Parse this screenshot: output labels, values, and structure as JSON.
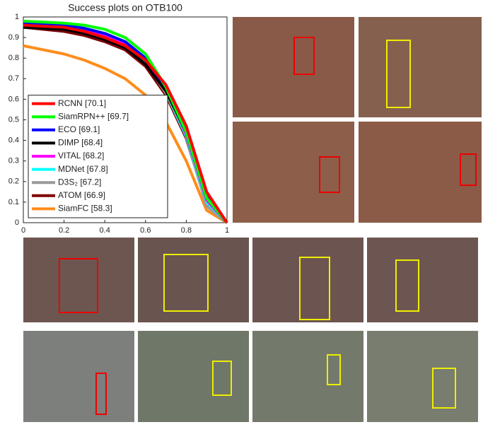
{
  "chart_data": {
    "type": "line",
    "title": "Success plots on OTB100",
    "x": [
      0,
      0.1,
      0.2,
      0.3,
      0.4,
      0.5,
      0.6,
      0.7,
      0.8,
      0.9,
      1
    ],
    "xlim": [
      0,
      1
    ],
    "xticks": [
      0,
      0.2,
      0.4,
      0.6,
      0.8,
      1
    ],
    "ylim": [
      0,
      1
    ],
    "yticks": [
      0,
      0.1,
      0.2,
      0.3,
      0.4,
      0.5,
      0.6,
      0.7,
      0.8,
      0.9,
      1
    ],
    "legend": "lower left",
    "series": [
      {
        "name": "RCNN [70.1]",
        "color": "#ff0000",
        "values": [
          0.96,
          0.955,
          0.95,
          0.93,
          0.9,
          0.86,
          0.79,
          0.67,
          0.47,
          0.15,
          0
        ]
      },
      {
        "name": "SiamRPN++ [69.7]",
        "color": "#00ff00",
        "values": [
          0.98,
          0.975,
          0.97,
          0.96,
          0.94,
          0.9,
          0.82,
          0.66,
          0.44,
          0.12,
          0
        ]
      },
      {
        "name": "ECO [69.1]",
        "color": "#0000ff",
        "values": [
          0.97,
          0.965,
          0.96,
          0.945,
          0.92,
          0.88,
          0.8,
          0.66,
          0.45,
          0.13,
          0
        ]
      },
      {
        "name": "DIMP [68.4]",
        "color": "#000000",
        "values": [
          0.95,
          0.945,
          0.94,
          0.92,
          0.89,
          0.85,
          0.77,
          0.64,
          0.44,
          0.12,
          0
        ]
      },
      {
        "name": "VITAL [68.2]",
        "color": "#ff00ff",
        "values": [
          0.98,
          0.97,
          0.96,
          0.94,
          0.91,
          0.87,
          0.79,
          0.65,
          0.43,
          0.11,
          0
        ]
      },
      {
        "name": "MDNet [67.8]",
        "color": "#00ffff",
        "values": [
          0.97,
          0.965,
          0.955,
          0.935,
          0.905,
          0.86,
          0.78,
          0.64,
          0.42,
          0.1,
          0
        ]
      },
      {
        "name": "D3S₂ [67.2]",
        "color": "#999999",
        "values": [
          0.96,
          0.955,
          0.945,
          0.925,
          0.9,
          0.86,
          0.78,
          0.63,
          0.42,
          0.08,
          0
        ]
      },
      {
        "name": "ATOM [66.9]",
        "color": "#800000",
        "values": [
          0.95,
          0.94,
          0.93,
          0.91,
          0.88,
          0.84,
          0.76,
          0.62,
          0.41,
          0.09,
          0
        ]
      },
      {
        "name": "SiamFC [58.3]",
        "color": "#ff8c1a",
        "values": [
          0.86,
          0.84,
          0.82,
          0.79,
          0.75,
          0.7,
          0.62,
          0.49,
          0.3,
          0.06,
          0
        ]
      }
    ]
  }
}
